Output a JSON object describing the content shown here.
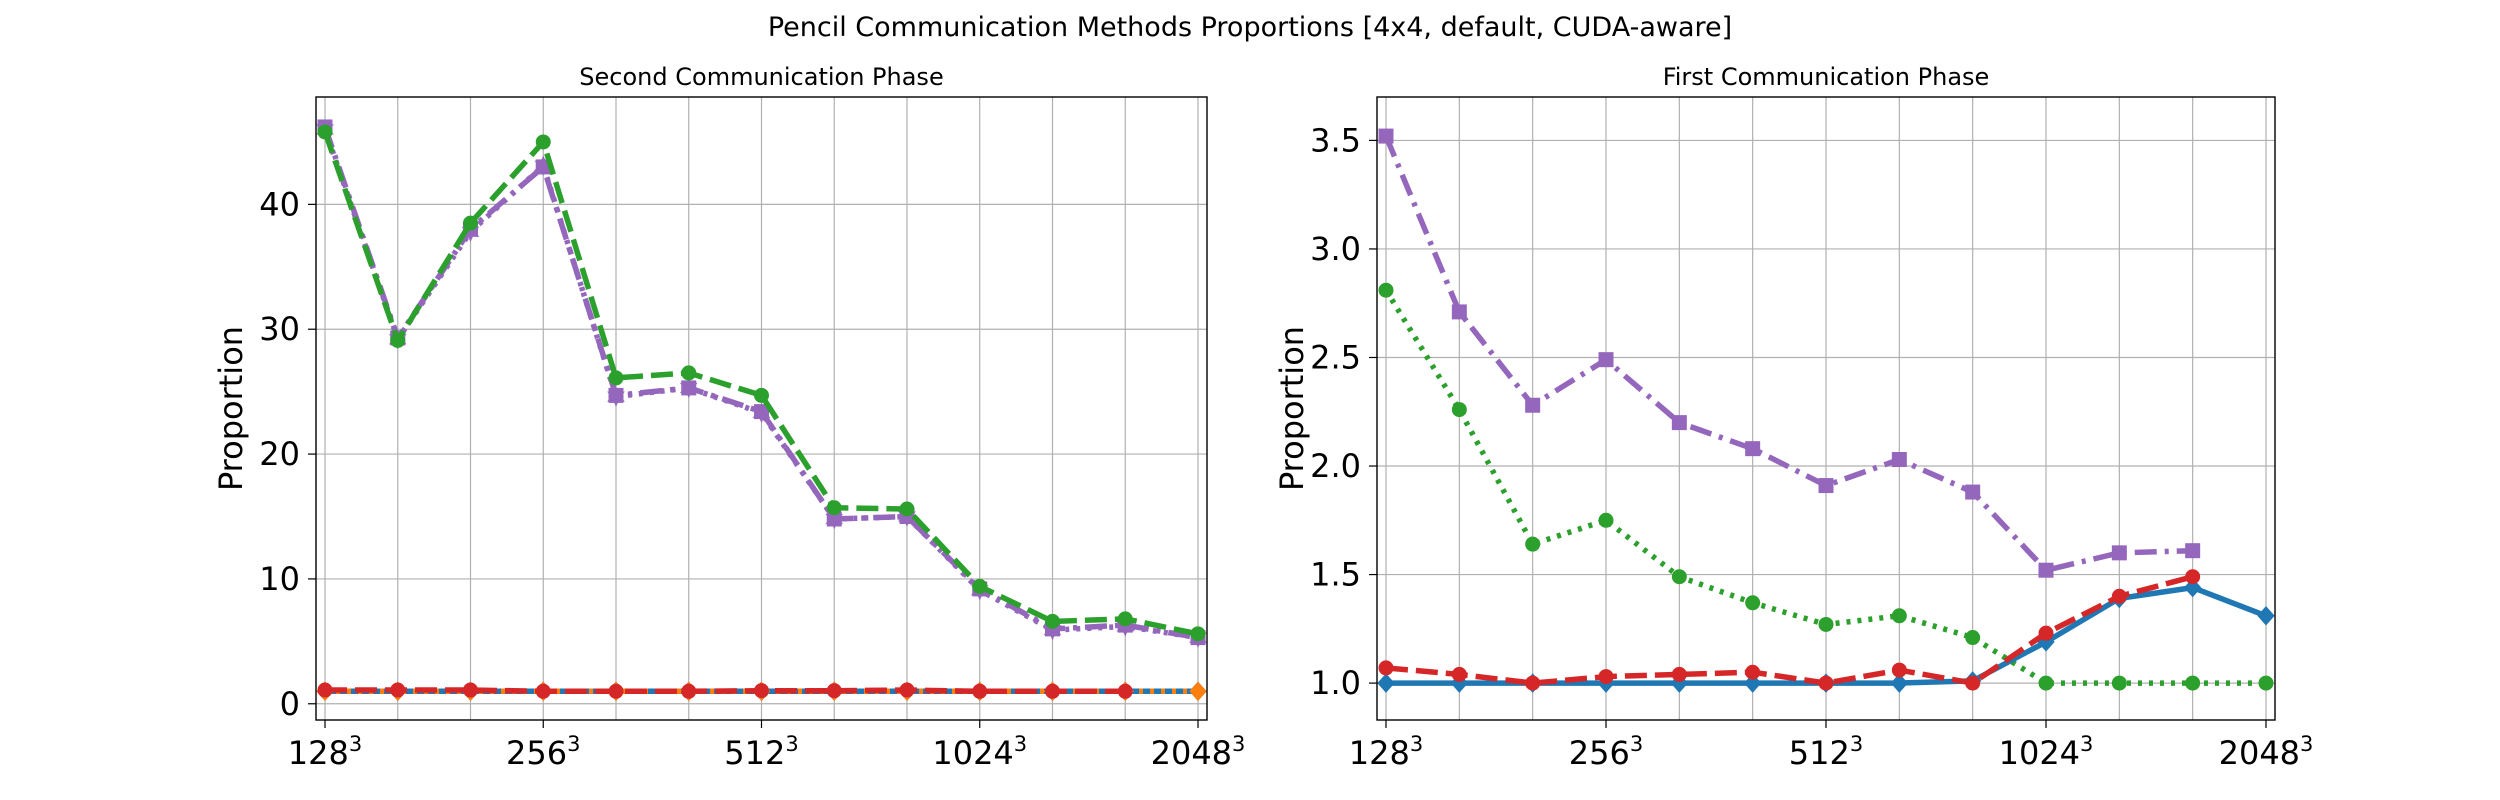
{
  "figure": {
    "suptitle": "Pencil Communication Methods Proportions [4x4, default, CUDA-aware]"
  },
  "chart_data": [
    {
      "type": "line",
      "title": "Second Communication Phase",
      "xlabel": "",
      "ylabel": "Proportion",
      "x_tick_labels": [
        {
          "base": "128",
          "sup": "3"
        },
        {
          "base": "256",
          "sup": "3"
        },
        {
          "base": "512",
          "sup": "3"
        },
        {
          "base": "1024",
          "sup": "3"
        },
        {
          "base": "2048",
          "sup": "3"
        }
      ],
      "y_ticks": [
        "0",
        "10",
        "20",
        "30",
        "40"
      ],
      "ylim": [
        -1.3,
        48.6
      ],
      "grid": true,
      "x_count": 13,
      "series": [
        {
          "color": "#1f77b4",
          "dash": "solid",
          "marker": "diamond",
          "values": [
            1.0,
            1.0,
            1.0,
            1.0,
            1.0,
            1.0,
            1.0,
            1.0,
            1.0,
            1.0,
            1.0,
            1.0,
            1.0
          ]
        },
        {
          "color": "#ff7f0e",
          "dash": "dotted",
          "marker": "diamond",
          "values": [
            1.0,
            1.0,
            1.0,
            1.0,
            1.0,
            1.0,
            1.0,
            1.0,
            1.0,
            1.0,
            1.0,
            1.0,
            1.0
          ]
        },
        {
          "color": "#d62728",
          "dash": "dashed",
          "marker": "circle",
          "values": [
            1.1,
            1.1,
            1.1,
            1.0,
            1.0,
            1.0,
            1.05,
            1.05,
            1.1,
            1.0,
            1.0,
            1.0,
            null
          ]
        },
        {
          "color": "#9467bd",
          "dash": "dashdot",
          "marker": "square",
          "values": [
            46.2,
            29.3,
            38.0,
            43.0,
            24.7,
            25.3,
            23.4,
            14.8,
            15.0,
            9.2,
            6.0,
            6.3,
            5.3
          ]
        },
        {
          "color": "#9467bd",
          "dash": "dotted",
          "marker": "star",
          "values": [
            46.0,
            29.2,
            37.8,
            43.1,
            24.6,
            25.3,
            23.3,
            14.8,
            15.0,
            9.1,
            5.9,
            6.2,
            5.3
          ]
        },
        {
          "color": "#2ca02c",
          "dash": "dashed",
          "marker": "circle",
          "values": [
            45.8,
            29.1,
            38.5,
            45.0,
            26.1,
            26.5,
            24.7,
            15.7,
            15.6,
            9.4,
            6.6,
            6.8,
            5.6
          ]
        }
      ]
    },
    {
      "type": "line",
      "title": "First Communication Phase",
      "xlabel": "",
      "ylabel": "Proportion",
      "x_tick_labels": [
        {
          "base": "128",
          "sup": "3"
        },
        {
          "base": "256",
          "sup": "3"
        },
        {
          "base": "512",
          "sup": "3"
        },
        {
          "base": "1024",
          "sup": "3"
        },
        {
          "base": "2048",
          "sup": "3"
        }
      ],
      "y_ticks": [
        "1.0",
        "1.5",
        "2.0",
        "2.5",
        "3.0",
        "3.5"
      ],
      "ylim": [
        0.83,
        3.7
      ],
      "grid": true,
      "x_count": 13,
      "series": [
        {
          "color": "#9467bd",
          "dash": "dashdot",
          "marker": "square",
          "values": [
            3.52,
            2.71,
            2.28,
            2.49,
            2.2,
            2.08,
            1.91,
            2.03,
            1.88,
            1.52,
            1.6,
            1.61,
            null
          ]
        },
        {
          "color": "#2ca02c",
          "dash": "dotted",
          "marker": "circle",
          "values": [
            2.81,
            2.26,
            1.64,
            1.75,
            1.49,
            1.37,
            1.27,
            1.31,
            1.21,
            1.0,
            1.0,
            1.0,
            1.0
          ]
        },
        {
          "color": "#1f77b4",
          "dash": "solid",
          "marker": "diamond",
          "values": [
            1.0,
            1.0,
            1.0,
            1.0,
            1.0,
            1.0,
            1.0,
            1.0,
            1.01,
            1.19,
            1.39,
            1.44,
            1.31
          ]
        },
        {
          "color": "#d62728",
          "dash": "dashed",
          "marker": "circle",
          "values": [
            1.07,
            1.04,
            1.0,
            1.03,
            1.04,
            1.05,
            1.0,
            1.06,
            1.0,
            1.23,
            1.4,
            1.49,
            null
          ]
        }
      ]
    }
  ]
}
